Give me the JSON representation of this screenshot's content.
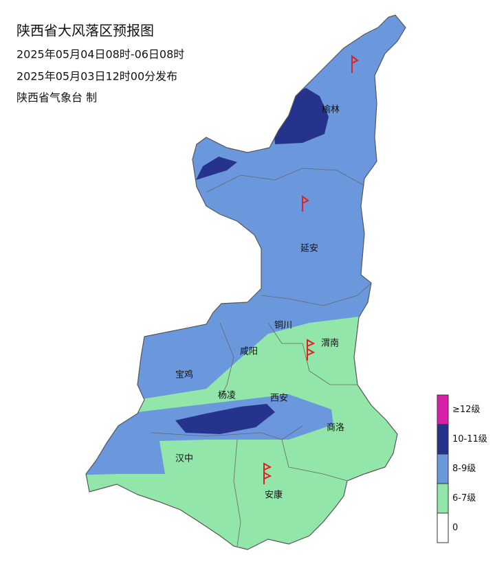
{
  "header": {
    "title": "陕西省大风落区预报图",
    "lines": [
      "2025年05月04日08时-06日08时",
      "2025年05月03日12时00分发布",
      "陕西省气象台 制"
    ]
  },
  "cities": [
    "榆林",
    "延安",
    "铜川",
    "渭南",
    "咸阳",
    "宝鸡",
    "杨凌",
    "西安",
    "商洛",
    "汉中",
    "安康"
  ],
  "legend": {
    "items": [
      {
        "label": "≥12级",
        "color": "#d81fa8"
      },
      {
        "label": "10-11级",
        "color": "#26338c"
      },
      {
        "label": "8-9级",
        "color": "#6b97dc"
      },
      {
        "label": "6-7级",
        "color": "#92e6aa"
      },
      {
        "label": "0",
        "color": "#ffffff"
      }
    ]
  }
}
